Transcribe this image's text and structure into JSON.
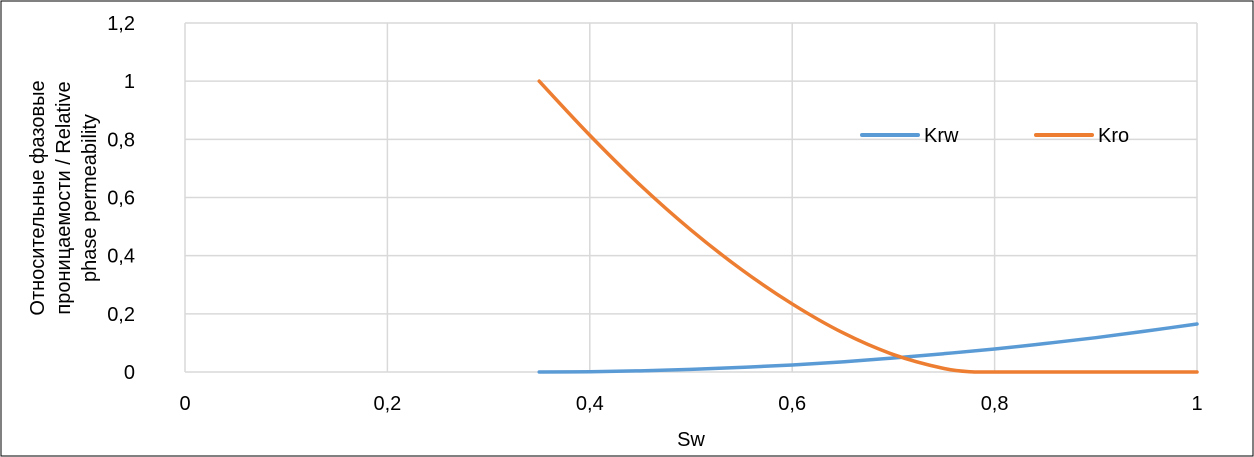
{
  "chart_data": {
    "type": "line",
    "xlabel": "Sw",
    "ylabel": "Относительные фазовые проницаемости / Relative phase permeability",
    "ylabel_lines": [
      "Относительные фазовые",
      "проницаемости / Relative",
      "phase permeability"
    ],
    "xlim": [
      0,
      1
    ],
    "ylim": [
      0,
      1.2
    ],
    "x_ticks": [
      0,
      0.2,
      0.4,
      0.6,
      0.8,
      1
    ],
    "x_tick_labels": [
      "0",
      "0,2",
      "0,4",
      "0,6",
      "0,8",
      "1"
    ],
    "y_ticks": [
      0,
      0.2,
      0.4,
      0.6,
      0.8,
      1,
      1.2
    ],
    "y_tick_labels": [
      "0",
      "0,2",
      "0,4",
      "0,6",
      "0,8",
      "1",
      "1,2"
    ],
    "grid": true,
    "legend_position": "top-right",
    "series": [
      {
        "name": "Krw",
        "color": "#5b9bd5",
        "x": [
          0.35,
          0.4,
          0.45,
          0.5,
          0.55,
          0.6,
          0.65,
          0.7,
          0.75,
          0.8,
          0.85,
          0.9,
          0.95,
          1.0
        ],
        "y": [
          0,
          0.001,
          0.004,
          0.009,
          0.016,
          0.024,
          0.035,
          0.048,
          0.063,
          0.079,
          0.098,
          0.118,
          0.141,
          0.165
        ]
      },
      {
        "name": "Kro",
        "color": "#ed7d31",
        "x": [
          0.35,
          0.4,
          0.45,
          0.5,
          0.55,
          0.6,
          0.65,
          0.7,
          0.75,
          0.78,
          0.8,
          0.85,
          0.9,
          0.95,
          1.0
        ],
        "y": [
          1,
          0.814,
          0.642,
          0.488,
          0.352,
          0.234,
          0.135,
          0.06,
          0.012,
          0,
          0,
          0,
          0,
          0,
          0
        ]
      }
    ]
  }
}
